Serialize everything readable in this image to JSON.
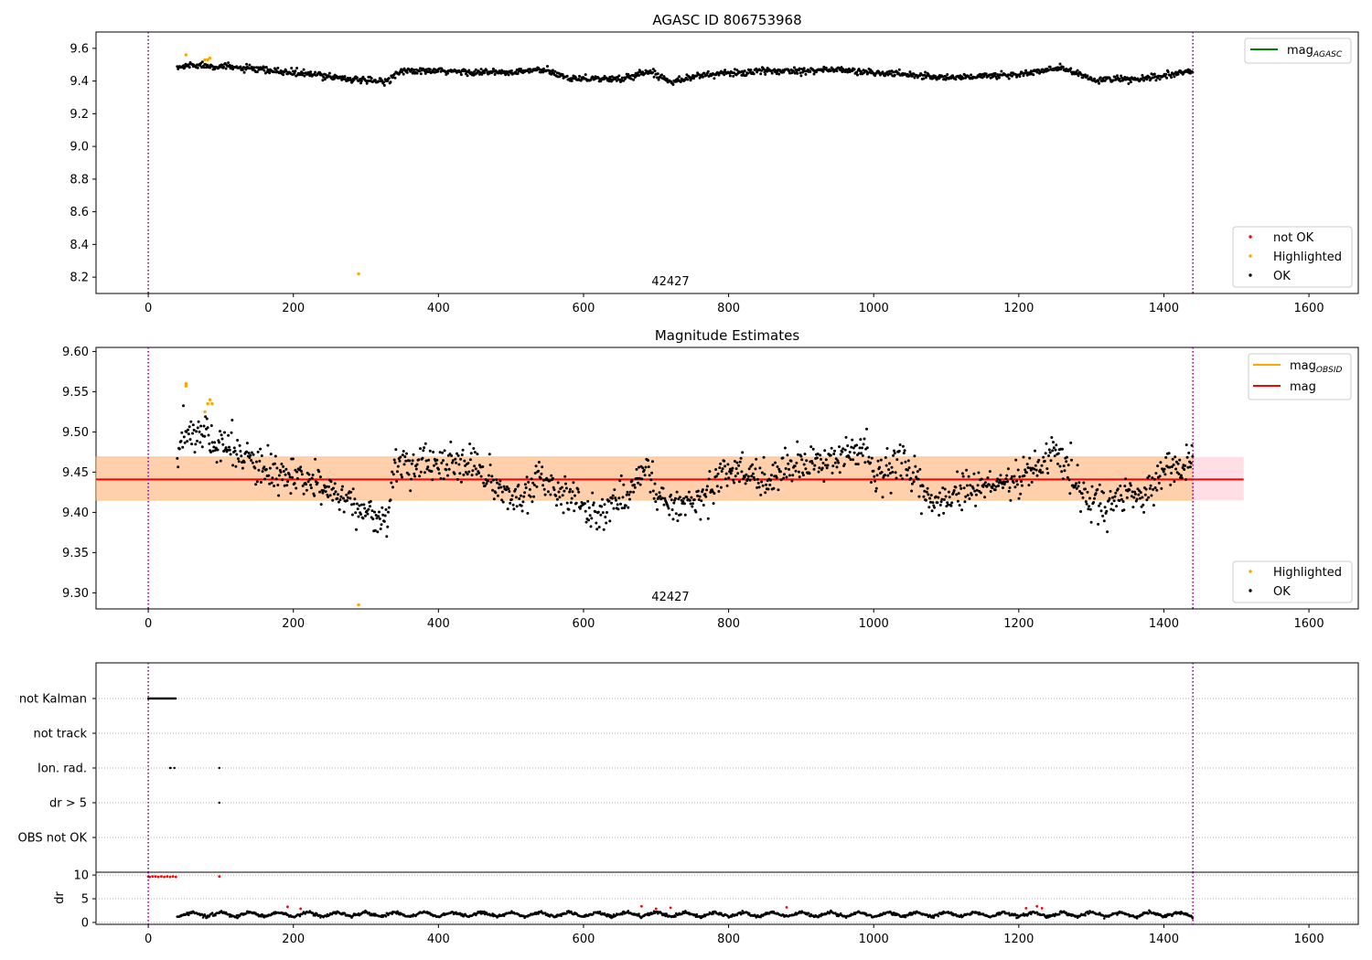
{
  "figure": {
    "x_ticks": [
      0,
      200,
      400,
      600,
      800,
      1000,
      1200,
      1400,
      1600
    ],
    "x_lim": [
      -72,
      1668
    ],
    "obs_start": 0,
    "obs_end": 1440,
    "vline_color": "#800080"
  },
  "chart_data": [
    {
      "type": "scatter",
      "title": "AGASC ID 806753968",
      "annotation": "42427",
      "ylim": [
        8.1,
        9.7
      ],
      "y_ticks": [
        8.2,
        8.4,
        8.6,
        8.8,
        9.0,
        9.2,
        9.4,
        9.6
      ],
      "grid": false,
      "legend_lines": {
        "position": "top-right",
        "items": [
          {
            "label": "mag",
            "sub": "AGASC",
            "color": "#008000"
          }
        ]
      },
      "legend_points": {
        "position": "bottom-right",
        "items": [
          {
            "label": "not OK",
            "color": "#ff0000"
          },
          {
            "label": "Highlighted",
            "color": "#ffa500"
          },
          {
            "label": "OK",
            "color": "#000000"
          }
        ]
      },
      "series": [
        {
          "name": "OK",
          "color": "#000000",
          "x_range": [
            40,
            1440
          ],
          "trend": [
            [
              40,
              9.48
            ],
            [
              60,
              9.5
            ],
            [
              100,
              9.49
            ],
            [
              150,
              9.47
            ],
            [
              200,
              9.45
            ],
            [
              250,
              9.43
            ],
            [
              300,
              9.4
            ],
            [
              330,
              9.4
            ],
            [
              345,
              9.46
            ],
            [
              400,
              9.46
            ],
            [
              500,
              9.45
            ],
            [
              540,
              9.47
            ],
            [
              580,
              9.42
            ],
            [
              650,
              9.41
            ],
            [
              690,
              9.46
            ],
            [
              720,
              9.4
            ],
            [
              770,
              9.44
            ],
            [
              850,
              9.46
            ],
            [
              950,
              9.47
            ],
            [
              1000,
              9.45
            ],
            [
              1050,
              9.44
            ],
            [
              1100,
              9.42
            ],
            [
              1150,
              9.43
            ],
            [
              1200,
              9.44
            ],
            [
              1260,
              9.48
            ],
            [
              1300,
              9.41
            ],
            [
              1370,
              9.41
            ],
            [
              1440,
              9.46
            ]
          ]
        },
        {
          "name": "Highlighted",
          "color": "#ffa500",
          "points": [
            [
              52,
              9.56
            ],
            [
              78,
              9.53
            ],
            [
              82,
              9.53
            ],
            [
              85,
              9.54
            ],
            [
              290,
              8.22
            ]
          ]
        },
        {
          "name": "not OK",
          "color": "#ff0000",
          "points": []
        }
      ]
    },
    {
      "type": "scatter",
      "title": "Magnitude Estimates",
      "annotation": "42427",
      "ylim": [
        9.28,
        9.605
      ],
      "y_ticks": [
        9.3,
        9.35,
        9.4,
        9.45,
        9.5,
        9.55,
        9.6
      ],
      "grid": false,
      "mag": 9.441,
      "mag_band": [
        9.415,
        9.469
      ],
      "band_x": [
        -72,
        1510
      ],
      "mag_obsid_band_x": [
        -72,
        1440
      ],
      "legend_lines": {
        "position": "top-right",
        "items": [
          {
            "label": "mag",
            "sub": "OBSID",
            "color": "#ffa500"
          },
          {
            "label": "mag",
            "sub": "",
            "color": "#ff0000"
          }
        ]
      },
      "legend_points": {
        "position": "bottom-right",
        "items": [
          {
            "label": "Highlighted",
            "color": "#ffa500"
          },
          {
            "label": "OK",
            "color": "#000000"
          }
        ]
      },
      "series": [
        {
          "name": "OK",
          "color": "#000000",
          "x_range": [
            40,
            1440
          ],
          "trend": [
            [
              42,
              9.47
            ],
            [
              50,
              9.5
            ],
            [
              65,
              9.5
            ],
            [
              80,
              9.5
            ],
            [
              95,
              9.48
            ],
            [
              120,
              9.48
            ],
            [
              150,
              9.455
            ],
            [
              200,
              9.44
            ],
            [
              250,
              9.43
            ],
            [
              270,
              9.42
            ],
            [
              300,
              9.4
            ],
            [
              330,
              9.39
            ],
            [
              340,
              9.46
            ],
            [
              380,
              9.46
            ],
            [
              450,
              9.46
            ],
            [
              480,
              9.43
            ],
            [
              510,
              9.41
            ],
            [
              540,
              9.45
            ],
            [
              570,
              9.42
            ],
            [
              620,
              9.4
            ],
            [
              660,
              9.42
            ],
            [
              690,
              9.46
            ],
            [
              700,
              9.42
            ],
            [
              740,
              9.41
            ],
            [
              770,
              9.42
            ],
            [
              790,
              9.45
            ],
            [
              820,
              9.45
            ],
            [
              860,
              9.44
            ],
            [
              880,
              9.46
            ],
            [
              920,
              9.46
            ],
            [
              950,
              9.47
            ],
            [
              990,
              9.48
            ],
            [
              1000,
              9.44
            ],
            [
              1030,
              9.46
            ],
            [
              1060,
              9.44
            ],
            [
              1080,
              9.41
            ],
            [
              1100,
              9.42
            ],
            [
              1150,
              9.43
            ],
            [
              1200,
              9.44
            ],
            [
              1230,
              9.46
            ],
            [
              1250,
              9.48
            ],
            [
              1270,
              9.45
            ],
            [
              1290,
              9.42
            ],
            [
              1320,
              9.41
            ],
            [
              1350,
              9.42
            ],
            [
              1370,
              9.42
            ],
            [
              1400,
              9.45
            ],
            [
              1440,
              9.46
            ]
          ]
        },
        {
          "name": "Highlighted",
          "color": "#ffa500",
          "points": [
            [
              52,
              9.56
            ],
            [
              52,
              9.557
            ],
            [
              78,
              9.525
            ],
            [
              82,
              9.535
            ],
            [
              85,
              9.54
            ],
            [
              88,
              9.535
            ],
            [
              290,
              9.285
            ]
          ]
        }
      ]
    },
    {
      "type": "scatter",
      "title": "",
      "category_labels": [
        "not Kalman",
        "not track",
        "Ion. rad.",
        "dr > 5",
        "OBS not OK"
      ],
      "grid": true,
      "flags": {
        "not Kalman": [
          [
            0,
            38
          ]
        ],
        "Ion. rad.": [
          [
            30,
            32
          ],
          [
            36,
            37
          ],
          [
            98,
            98
          ]
        ],
        "dr > 5": [
          [
            98,
            98
          ]
        ],
        "not track": [],
        "OBS not OK": []
      }
    },
    {
      "type": "scatter",
      "title": "",
      "ylabel": "dr",
      "ylim": [
        -0.4,
        10.6
      ],
      "y_ticks": [
        0,
        5,
        10
      ],
      "grid": true,
      "series": [
        {
          "name": "dr",
          "color": "#000000",
          "x_range": [
            40,
            1440
          ],
          "mean": 1.6,
          "amplitude": 1.0
        },
        {
          "name": "dr not OK",
          "color": "#ff0000",
          "points": [
            [
              0,
              9.7
            ],
            [
              2,
              9.6
            ],
            [
              6,
              9.7
            ],
            [
              10,
              9.7
            ],
            [
              14,
              9.6
            ],
            [
              18,
              9.7
            ],
            [
              22,
              9.6
            ],
            [
              26,
              9.7
            ],
            [
              30,
              9.6
            ],
            [
              34,
              9.7
            ],
            [
              38,
              9.6
            ],
            [
              98,
              9.7
            ],
            [
              192,
              3.3
            ],
            [
              210,
              2.9
            ],
            [
              680,
              3.4
            ],
            [
              700,
              2.9
            ],
            [
              720,
              3.1
            ],
            [
              880,
              3.2
            ],
            [
              1210,
              3.0
            ],
            [
              1225,
              3.4
            ],
            [
              1232,
              3.0
            ]
          ]
        }
      ]
    }
  ]
}
